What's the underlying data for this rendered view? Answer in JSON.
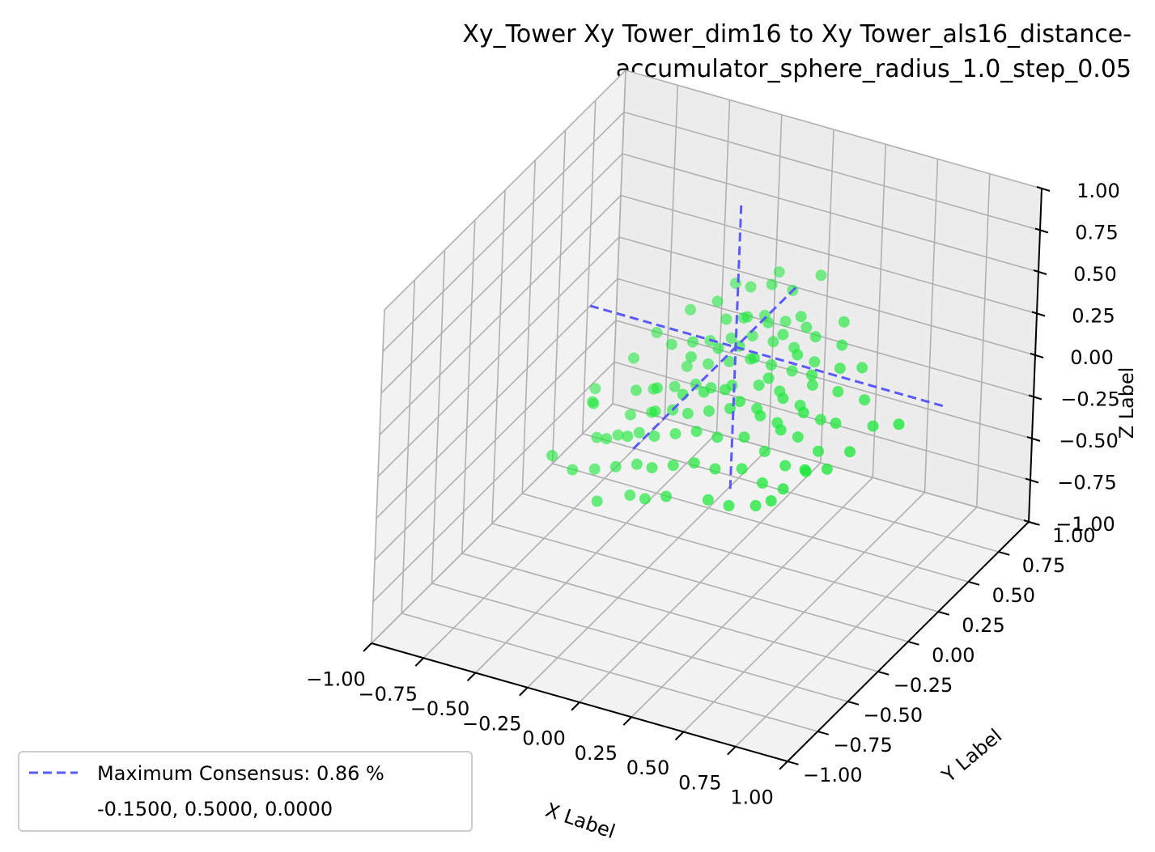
{
  "chart_data": {
    "type": "scatter",
    "projection": "3d",
    "title": [
      "Xy_Tower Xy Tower_dim16 to Xy Tower_als16_distance-",
      "accumulator_sphere_radius_1.0_step_0.05"
    ],
    "xlabel": "X Label",
    "ylabel": "Y Label",
    "zlabel": "Z Label",
    "xlim": [
      -1.0,
      1.0
    ],
    "ylim": [
      -1.0,
      1.0
    ],
    "zlim": [
      -1.0,
      1.0
    ],
    "xticks": [
      "−1.00",
      "−0.75",
      "−0.50",
      "−0.25",
      "0.00",
      "0.25",
      "0.50",
      "0.75",
      "1.00"
    ],
    "yticks": [
      "−1.00",
      "−0.75",
      "−0.50",
      "−0.25",
      "0.00",
      "0.25",
      "0.50",
      "0.75",
      "1.00"
    ],
    "zticks": [
      "−1.00",
      "−0.75",
      "−0.50",
      "−0.25",
      "0.00",
      "0.25",
      "0.50",
      "0.75",
      "1.00"
    ],
    "grid": true,
    "legend": {
      "placement": "lower-left",
      "entries": [
        "Maximum Consensus: 0.86 %",
        "-0.1500, 0.5000, 0.0000"
      ]
    },
    "consensus_point": [
      -0.15,
      0.5,
      0.0
    ],
    "series": [
      {
        "kind": "scatter",
        "color": "#1ee83c",
        "points": [
          [
            -0.55,
            0.05,
            -0.55
          ],
          [
            -0.45,
            0.05,
            -0.5
          ],
          [
            -0.35,
            0.05,
            -0.45
          ],
          [
            -0.25,
            0.0,
            -0.4
          ],
          [
            -0.15,
            0.0,
            -0.35
          ],
          [
            -0.05,
            0.0,
            -0.3
          ],
          [
            0.05,
            0.0,
            -0.3
          ],
          [
            0.15,
            0.05,
            -0.3
          ],
          [
            0.25,
            0.05,
            -0.35
          ],
          [
            0.35,
            0.05,
            -0.35
          ],
          [
            -0.6,
            0.15,
            -0.45
          ],
          [
            -0.5,
            0.15,
            -0.4
          ],
          [
            -0.4,
            0.15,
            -0.35
          ],
          [
            -0.3,
            0.1,
            -0.3
          ],
          [
            -0.2,
            0.1,
            -0.25
          ],
          [
            -0.1,
            0.1,
            -0.2
          ],
          [
            0.0,
            0.1,
            -0.2
          ],
          [
            0.1,
            0.15,
            -0.2
          ],
          [
            0.2,
            0.15,
            -0.25
          ],
          [
            0.3,
            0.15,
            -0.3
          ],
          [
            0.4,
            0.15,
            -0.3
          ],
          [
            -0.5,
            0.25,
            -0.35
          ],
          [
            -0.4,
            0.25,
            -0.3
          ],
          [
            -0.3,
            0.25,
            -0.25
          ],
          [
            -0.2,
            0.2,
            -0.2
          ],
          [
            -0.1,
            0.2,
            -0.15
          ],
          [
            0.0,
            0.2,
            -0.1
          ],
          [
            0.1,
            0.25,
            -0.1
          ],
          [
            0.2,
            0.25,
            -0.15
          ],
          [
            0.3,
            0.25,
            -0.2
          ],
          [
            0.4,
            0.25,
            -0.25
          ],
          [
            -0.45,
            0.35,
            -0.25
          ],
          [
            -0.35,
            0.35,
            -0.2
          ],
          [
            -0.25,
            0.35,
            -0.15
          ],
          [
            -0.15,
            0.3,
            -0.1
          ],
          [
            -0.05,
            0.3,
            -0.05
          ],
          [
            0.05,
            0.35,
            -0.05
          ],
          [
            0.15,
            0.35,
            -0.05
          ],
          [
            0.25,
            0.35,
            -0.1
          ],
          [
            0.35,
            0.35,
            -0.15
          ],
          [
            -0.35,
            0.45,
            -0.15
          ],
          [
            -0.25,
            0.45,
            -0.1
          ],
          [
            -0.15,
            0.45,
            -0.05
          ],
          [
            -0.05,
            0.45,
            0.0
          ],
          [
            0.05,
            0.45,
            0.0
          ],
          [
            0.15,
            0.45,
            0.0
          ],
          [
            0.25,
            0.45,
            -0.05
          ],
          [
            -0.3,
            0.55,
            -0.05
          ],
          [
            -0.2,
            0.55,
            0.0
          ],
          [
            -0.1,
            0.55,
            0.05
          ],
          [
            0.0,
            0.55,
            0.05
          ],
          [
            0.1,
            0.55,
            0.05
          ],
          [
            0.2,
            0.55,
            0.0
          ],
          [
            -0.2,
            0.65,
            0.05
          ],
          [
            -0.1,
            0.65,
            0.1
          ],
          [
            0.0,
            0.65,
            0.1
          ],
          [
            0.1,
            0.65,
            0.1
          ],
          [
            -0.5,
            0.05,
            -0.35
          ],
          [
            -0.4,
            0.05,
            -0.3
          ],
          [
            -0.3,
            0.1,
            -0.15
          ],
          [
            -0.2,
            0.15,
            -0.05
          ],
          [
            -0.1,
            0.15,
            0.0
          ],
          [
            0.0,
            0.15,
            0.05
          ],
          [
            0.1,
            0.1,
            0.05
          ],
          [
            0.2,
            0.1,
            0.0
          ],
          [
            0.3,
            0.1,
            -0.05
          ],
          [
            -0.45,
            0.2,
            -0.15
          ],
          [
            -0.35,
            0.2,
            -0.1
          ],
          [
            -0.25,
            0.3,
            0.05
          ],
          [
            -0.15,
            0.35,
            0.1
          ],
          [
            -0.05,
            0.35,
            0.15
          ],
          [
            0.05,
            0.3,
            0.15
          ],
          [
            0.15,
            0.25,
            0.1
          ],
          [
            0.25,
            0.2,
            0.05
          ],
          [
            0.35,
            0.2,
            0.0
          ],
          [
            -0.4,
            0.4,
            0.0
          ],
          [
            -0.3,
            0.4,
            0.05
          ],
          [
            -0.2,
            0.5,
            0.15
          ],
          [
            -0.1,
            0.5,
            0.2
          ],
          [
            0.0,
            0.5,
            0.2
          ],
          [
            0.1,
            0.45,
            0.2
          ],
          [
            0.2,
            0.4,
            0.15
          ],
          [
            0.3,
            0.35,
            0.1
          ],
          [
            -0.3,
            0.6,
            0.15
          ],
          [
            -0.2,
            0.7,
            0.2
          ],
          [
            -0.1,
            0.7,
            0.25
          ],
          [
            0.0,
            0.7,
            0.25
          ],
          [
            0.1,
            0.6,
            0.2
          ],
          [
            0.2,
            0.55,
            0.15
          ],
          [
            -0.6,
            0.1,
            -0.2
          ],
          [
            -0.65,
            0.2,
            -0.3
          ],
          [
            -0.7,
            0.3,
            -0.3
          ],
          [
            0.45,
            0.05,
            -0.2
          ],
          [
            0.5,
            0.15,
            -0.25
          ],
          [
            0.45,
            0.3,
            -0.1
          ],
          [
            0.4,
            0.4,
            0.0
          ],
          [
            0.35,
            0.5,
            0.05
          ],
          [
            -0.55,
            0.35,
            -0.1
          ],
          [
            -0.5,
            0.45,
            0.0
          ],
          [
            -0.4,
            0.55,
            0.1
          ],
          [
            0.3,
            0.6,
            0.1
          ],
          [
            0.25,
            0.7,
            0.15
          ],
          [
            -0.3,
            0.75,
            0.15
          ],
          [
            -0.35,
            0.0,
            -0.6
          ],
          [
            -0.25,
            -0.05,
            -0.55
          ],
          [
            0.05,
            -0.05,
            -0.45
          ],
          [
            0.15,
            -0.05,
            -0.45
          ],
          [
            -0.15,
            0.85,
            0.2
          ],
          [
            0.05,
            0.85,
            0.25
          ],
          [
            0.4,
            0.6,
            0.0
          ],
          [
            0.5,
            0.45,
            -0.05
          ],
          [
            0.6,
            0.35,
            -0.1
          ],
          [
            0.55,
            0.25,
            -0.2
          ],
          [
            0.75,
            0.3,
            0.0
          ],
          [
            -0.7,
            -0.05,
            -0.45
          ],
          [
            -0.6,
            -0.05,
            -0.5
          ],
          [
            -0.45,
            -0.1,
            -0.6
          ],
          [
            -0.15,
            -0.05,
            -0.5
          ],
          [
            0.25,
            0.0,
            -0.45
          ],
          [
            0.35,
            -0.05,
            -0.35
          ]
        ]
      }
    ],
    "lines": [
      {
        "name": "Maximum Consensus: 0.86 %",
        "color": "#5a5aff",
        "style": "dashed",
        "from": [
          -0.85,
          0.5,
          0.0
        ],
        "to": [
          0.85,
          0.5,
          0.0
        ]
      },
      {
        "color": "#5a5aff",
        "style": "dashed",
        "from": [
          -0.15,
          -0.35,
          0.0
        ],
        "to": [
          -0.15,
          1.0,
          0.0
        ]
      },
      {
        "color": "#5a5aff",
        "style": "dashed",
        "from": [
          -0.15,
          0.5,
          -0.85
        ],
        "to": [
          -0.15,
          0.5,
          0.85
        ]
      }
    ]
  }
}
